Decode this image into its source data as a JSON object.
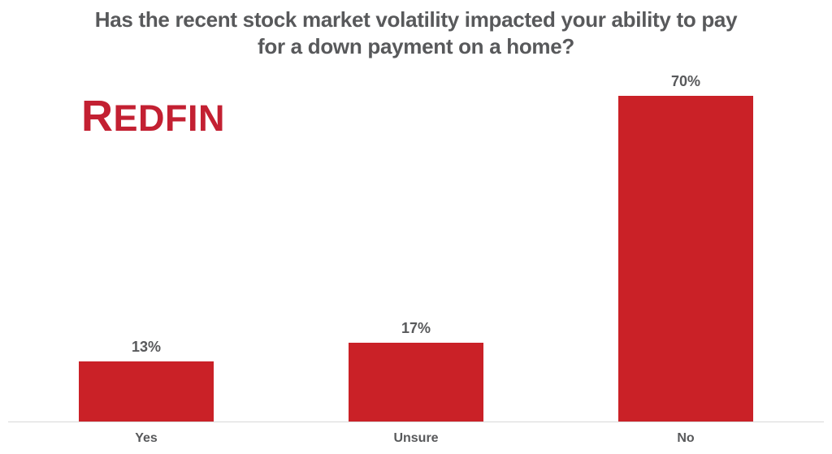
{
  "page": {
    "background_color": "#ffffff"
  },
  "header": {
    "title_lines": [
      "Has the recent stock market volatility impacted your ability to pay",
      "for a down payment on a home?"
    ],
    "title_color": "#58595b"
  },
  "logo": {
    "text": "REDFIN",
    "first_letter": "R",
    "rest_letters": "EDFIN",
    "color": "#c32032"
  },
  "chart_data": {
    "type": "bar",
    "title": "Has the recent stock market volatility impacted your ability to pay for a down payment on a home?",
    "categories": [
      "Yes",
      "Unsure",
      "No"
    ],
    "values": [
      13,
      17,
      70
    ],
    "value_labels": [
      "13%",
      "17%",
      "70%"
    ],
    "xlabel": "",
    "ylabel": "",
    "ylim": [
      0,
      70
    ],
    "grid": false,
    "legend": false,
    "bar_color": "#ca2127",
    "label_color": "#58595b",
    "axis_line_color": "#d9d9d9"
  }
}
